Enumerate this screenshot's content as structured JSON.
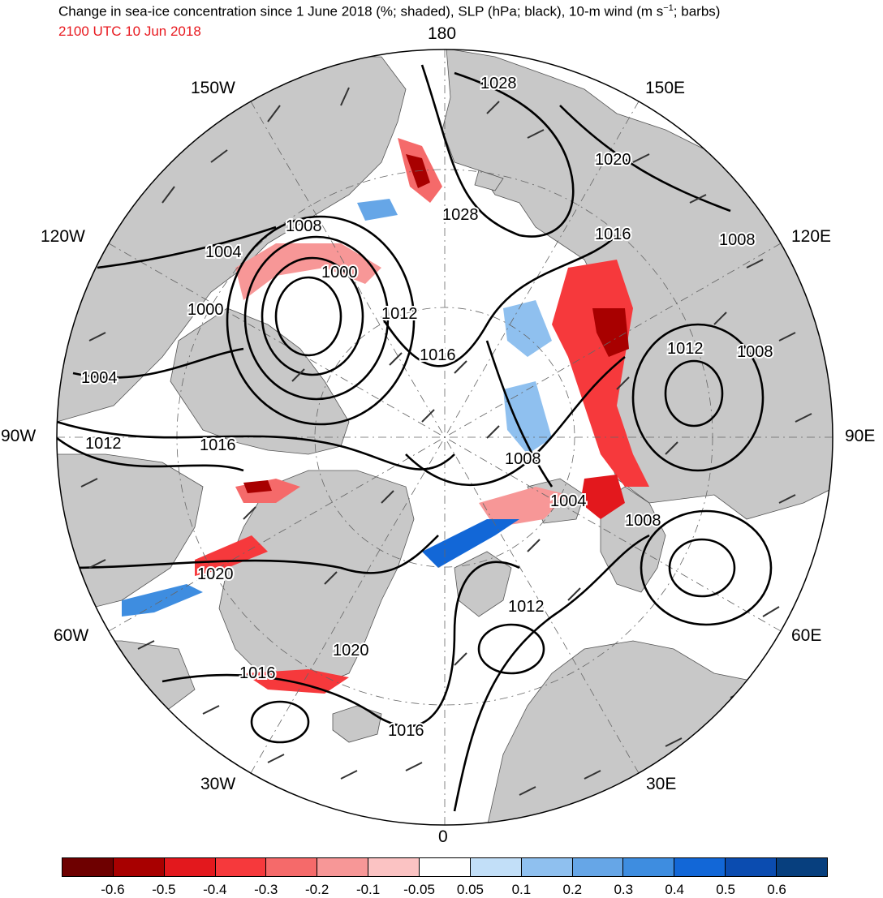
{
  "title": {
    "main": "Change in sea-ice concentration since 1 June 2018 (%; shaded), SLP (hPa; black), 10-m wind (m s",
    "unit_exp": "−1",
    "tail": "; barbs)",
    "valid_time": "2100 UTC 10 Jun 2018"
  },
  "longitude_labels": {
    "n180": "180",
    "w150": "150W",
    "e150": "150E",
    "w120": "120W",
    "e120": "120E",
    "w90": "90W",
    "e90": "90E",
    "w60": "60W",
    "e60": "60E",
    "w30": "30W",
    "e30": "30E",
    "s0": "0"
  },
  "slp_contour_labels": [
    "1028",
    "1020",
    "1028",
    "1016",
    "1008",
    "1008",
    "1004",
    "1000",
    "1000",
    "1012",
    "1016",
    "1012",
    "1008",
    "1004",
    "1012",
    "1016",
    "1008",
    "1004",
    "1008",
    "1020",
    "1020",
    "1012",
    "1016",
    "1016"
  ],
  "colorbar": {
    "colors": [
      "#6e0000",
      "#a80000",
      "#e3181d",
      "#f6393c",
      "#f56a6a",
      "#f79797",
      "#fbc3c3",
      "#ffffff",
      "#c2dff8",
      "#8fc0ef",
      "#66a6e7",
      "#3e8de0",
      "#1267d7",
      "#0b4cb0",
      "#073f7e"
    ],
    "ticks": [
      "-0.6",
      "-0.5",
      "-0.4",
      "-0.3",
      "-0.2",
      "-0.1",
      "-0.05",
      "0.05",
      "0.1",
      "0.2",
      "0.3",
      "0.4",
      "0.5",
      "0.6"
    ]
  },
  "style": {
    "land": "#c8c8c8",
    "ocean": "#ffffff",
    "contour": "#000000",
    "barb": "#333333",
    "stamp": "#e8191f"
  }
}
